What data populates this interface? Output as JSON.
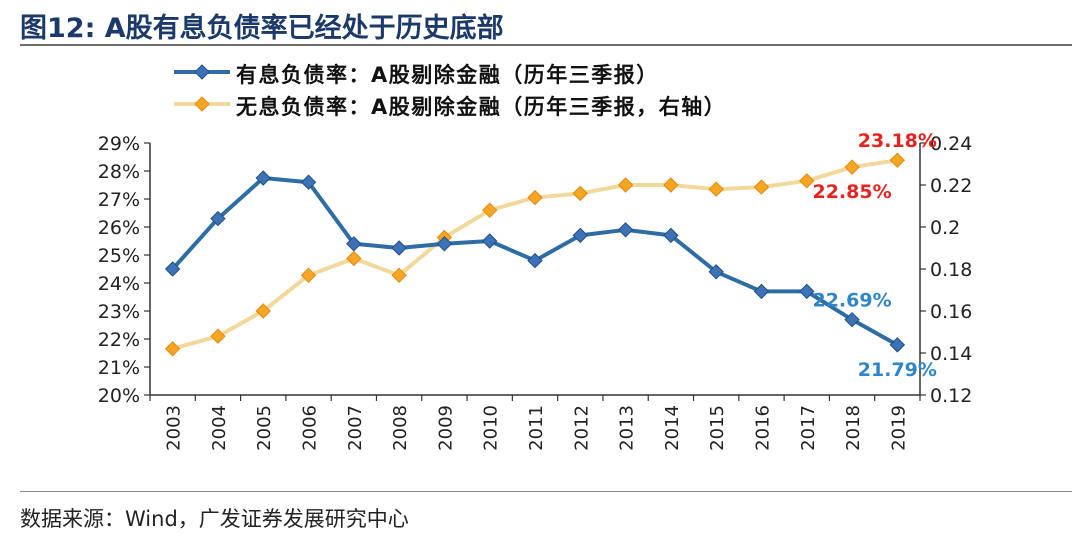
{
  "page": {
    "title": "图12:  A股有息负债率已经处于历史底部",
    "source": "数据来源：Wind，广发证券发展研究中心"
  },
  "colors": {
    "series1": "#2e6da4",
    "series1_marker": "#3d73b6",
    "series2": "#f2d89a",
    "series2_marker": "#f5a623",
    "axis": "#333333",
    "label_red": "#e8231f",
    "label_blue": "#2e86c8"
  },
  "chart_data": {
    "type": "line",
    "categories": [
      "2003",
      "2004",
      "2005",
      "2006",
      "2007",
      "2008",
      "2009",
      "2010",
      "2011",
      "2012",
      "2013",
      "2014",
      "2015",
      "2016",
      "2017",
      "2018",
      "2019"
    ],
    "series": [
      {
        "name": "有息负债率：A股剔除金融（历年三季报）",
        "axis": "left",
        "values": [
          24.5,
          26.3,
          27.75,
          27.6,
          25.4,
          25.25,
          25.4,
          25.5,
          24.8,
          25.7,
          25.9,
          25.7,
          24.4,
          23.7,
          23.7,
          22.69,
          21.79
        ]
      },
      {
        "name": "无息负债率：A股剔除金融（历年三季报，右轴）",
        "axis": "right",
        "values": [
          0.142,
          0.148,
          0.16,
          0.177,
          0.185,
          0.177,
          0.195,
          0.208,
          0.214,
          0.216,
          0.22,
          0.22,
          0.218,
          0.219,
          0.222,
          0.2285,
          0.2318
        ]
      }
    ],
    "y_left": {
      "min": 20,
      "max": 29,
      "step": 1,
      "ticks": [
        "20%",
        "21%",
        "22%",
        "23%",
        "24%",
        "25%",
        "26%",
        "27%",
        "28%",
        "29%"
      ]
    },
    "y_right": {
      "min": 0.12,
      "max": 0.24,
      "step": 0.02,
      "ticks": [
        "0.12",
        "0.14",
        "0.16",
        "0.18",
        "0.2",
        "0.22",
        "0.24"
      ]
    },
    "annotations": [
      {
        "text": "23.18%",
        "series": 1,
        "index": 16,
        "color": "red",
        "place": "above"
      },
      {
        "text": "22.85%",
        "series": 1,
        "index": 15,
        "color": "red",
        "place": "below"
      },
      {
        "text": "22.69%",
        "series": 0,
        "index": 15,
        "color": "blue",
        "place": "above"
      },
      {
        "text": "21.79%",
        "series": 0,
        "index": 16,
        "color": "blue",
        "place": "below"
      }
    ]
  }
}
